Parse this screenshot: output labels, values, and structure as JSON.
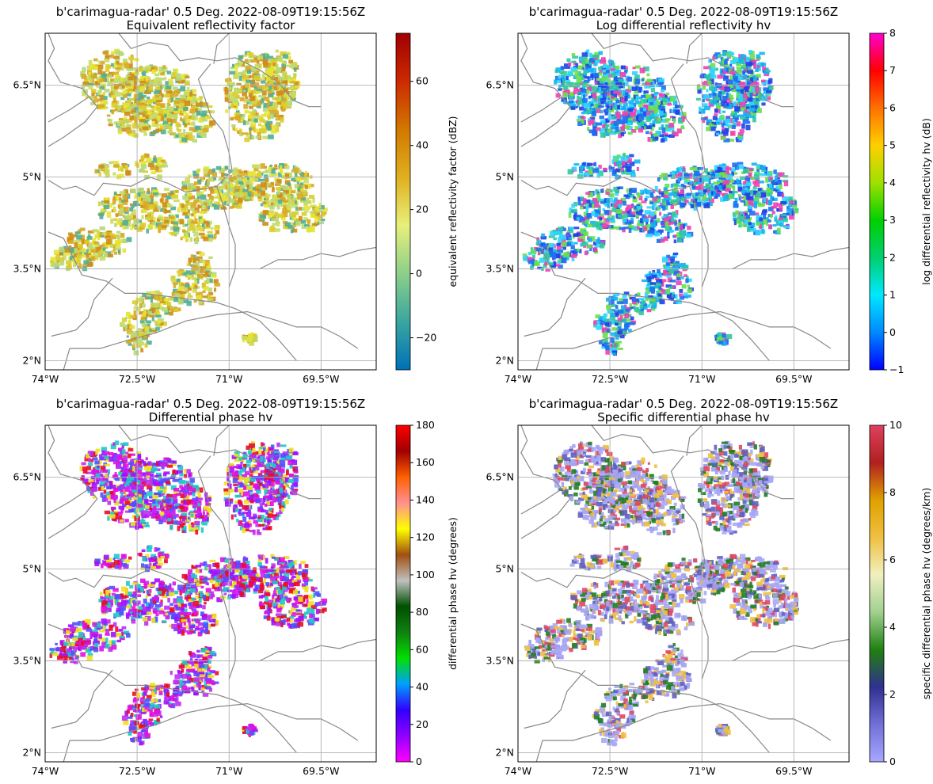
{
  "figure": {
    "background": "#ffffff",
    "coast_color": "#888888",
    "grid_color": "#b0b0b0"
  },
  "chart_data": [
    {
      "type": "heatmap",
      "title": "b'carimagua-radar' 0.5 Deg. 2022-08-09T19:15:56Z",
      "subtitle": "Equivalent reflectivity factor",
      "x_ticks": [
        "74°W",
        "72.5°W",
        "71°W",
        "69.5°W"
      ],
      "y_ticks": [
        "6.5°N",
        "5°N",
        "3.5°N",
        "2°N"
      ],
      "xlim": [
        -74.0,
        -68.6
      ],
      "ylim": [
        1.85,
        7.35
      ],
      "grid": true,
      "colorbar": {
        "label": "equivalent reflectivity factor (dBZ)",
        "min": -30,
        "max": 75,
        "ticks": [
          -20,
          0,
          20,
          40,
          60
        ],
        "tick_labels": [
          "−20",
          "0",
          "20",
          "40",
          "60"
        ],
        "colors": [
          "#0070b8",
          "#3aa6a0",
          "#8ccf8a",
          "#e8f07a",
          "#e0b020",
          "#d27800",
          "#cc2a00",
          "#a00000"
        ]
      },
      "echo_colors": [
        "#e6e432",
        "#dccd2a",
        "#d8a826",
        "#cf8c1a",
        "#c9dc66",
        "#b5d879",
        "#4fae98"
      ]
    },
    {
      "type": "heatmap",
      "title": "b'carimagua-radar' 0.5 Deg. 2022-08-09T19:15:56Z",
      "subtitle": "Log differential reflectivity hv",
      "x_ticks": [
        "74°W",
        "72.5°W",
        "71°W",
        "69.5°W"
      ],
      "y_ticks": [
        "6.5°N",
        "5°N",
        "3.5°N",
        "2°N"
      ],
      "xlim": [
        -74.0,
        -68.6
      ],
      "ylim": [
        1.85,
        7.35
      ],
      "grid": true,
      "colorbar": {
        "label": "log differential reflectivity hv (dB)",
        "min": -1,
        "max": 8,
        "ticks": [
          -1,
          0,
          1,
          2,
          3,
          4,
          5,
          6,
          7,
          8
        ],
        "tick_labels": [
          "−1",
          "0",
          "1",
          "2",
          "3",
          "4",
          "5",
          "6",
          "7",
          "8"
        ],
        "colors": [
          "#0000ff",
          "#0088ff",
          "#00e8ff",
          "#00d070",
          "#00d000",
          "#a0e000",
          "#ffd000",
          "#ff7000",
          "#ff0000",
          "#ff00d0"
        ]
      },
      "echo_colors": [
        "#12b4ef",
        "#1c6ff0",
        "#2ed6ff",
        "#2040e8",
        "#30c8a0",
        "#6ae04a",
        "#f040b0"
      ]
    },
    {
      "type": "heatmap",
      "title": "b'carimagua-radar' 0.5 Deg. 2022-08-09T19:15:56Z",
      "subtitle": "Differential phase hv",
      "x_ticks": [
        "74°W",
        "72.5°W",
        "71°W",
        "69.5°W"
      ],
      "y_ticks": [
        "6.5°N",
        "5°N",
        "3.5°N",
        "2°N"
      ],
      "xlim": [
        -74.0,
        -68.6
      ],
      "ylim": [
        1.85,
        7.35
      ],
      "grid": true,
      "colorbar": {
        "label": "differential phase hv (degrees)",
        "min": 0,
        "max": 180,
        "ticks": [
          0,
          20,
          40,
          60,
          80,
          100,
          120,
          140,
          160,
          180
        ],
        "tick_labels": [
          "0",
          "20",
          "40",
          "60",
          "80",
          "100",
          "120",
          "140",
          "160",
          "180"
        ],
        "colors": [
          "#ff00ff",
          "#9000ff",
          "#3000ff",
          "#00a0ff",
          "#00e000",
          "#108010",
          "#005000",
          "#c0c0c0",
          "#a05010",
          "#ffff00",
          "#ff9090",
          "#ff6000",
          "#a00000",
          "#ff0000"
        ]
      },
      "echo_colors": [
        "#c02cf0",
        "#a010ff",
        "#e010e0",
        "#e80c28",
        "#5050ff",
        "#20c8c8",
        "#f0e020"
      ]
    },
    {
      "type": "heatmap",
      "title": "b'carimagua-radar' 0.5 Deg. 2022-08-09T19:15:56Z",
      "subtitle": "Specific differential phase hv",
      "x_ticks": [
        "74°W",
        "72.5°W",
        "71°W",
        "69.5°W"
      ],
      "y_ticks": [
        "6.5°N",
        "5°N",
        "3.5°N",
        "2°N"
      ],
      "xlim": [
        -74.0,
        -68.6
      ],
      "ylim": [
        1.85,
        7.35
      ],
      "grid": true,
      "colorbar": {
        "label": "specific differential phase hv (degrees/km)",
        "min": 0,
        "max": 10,
        "ticks": [
          0,
          2,
          4,
          6,
          8,
          10
        ],
        "tick_labels": [
          "0",
          "2",
          "4",
          "6",
          "8",
          "10"
        ],
        "colors": [
          "#a8a8ff",
          "#7070d8",
          "#303090",
          "#208010",
          "#a0d090",
          "#f0f0c0",
          "#f0c040",
          "#e0a000",
          "#b02020",
          "#e04060"
        ]
      },
      "echo_colors": [
        "#a8a8f8",
        "#a8a8f8",
        "#a0a0f0",
        "#6060c0",
        "#e04860",
        "#208020",
        "#f0c040"
      ]
    }
  ]
}
